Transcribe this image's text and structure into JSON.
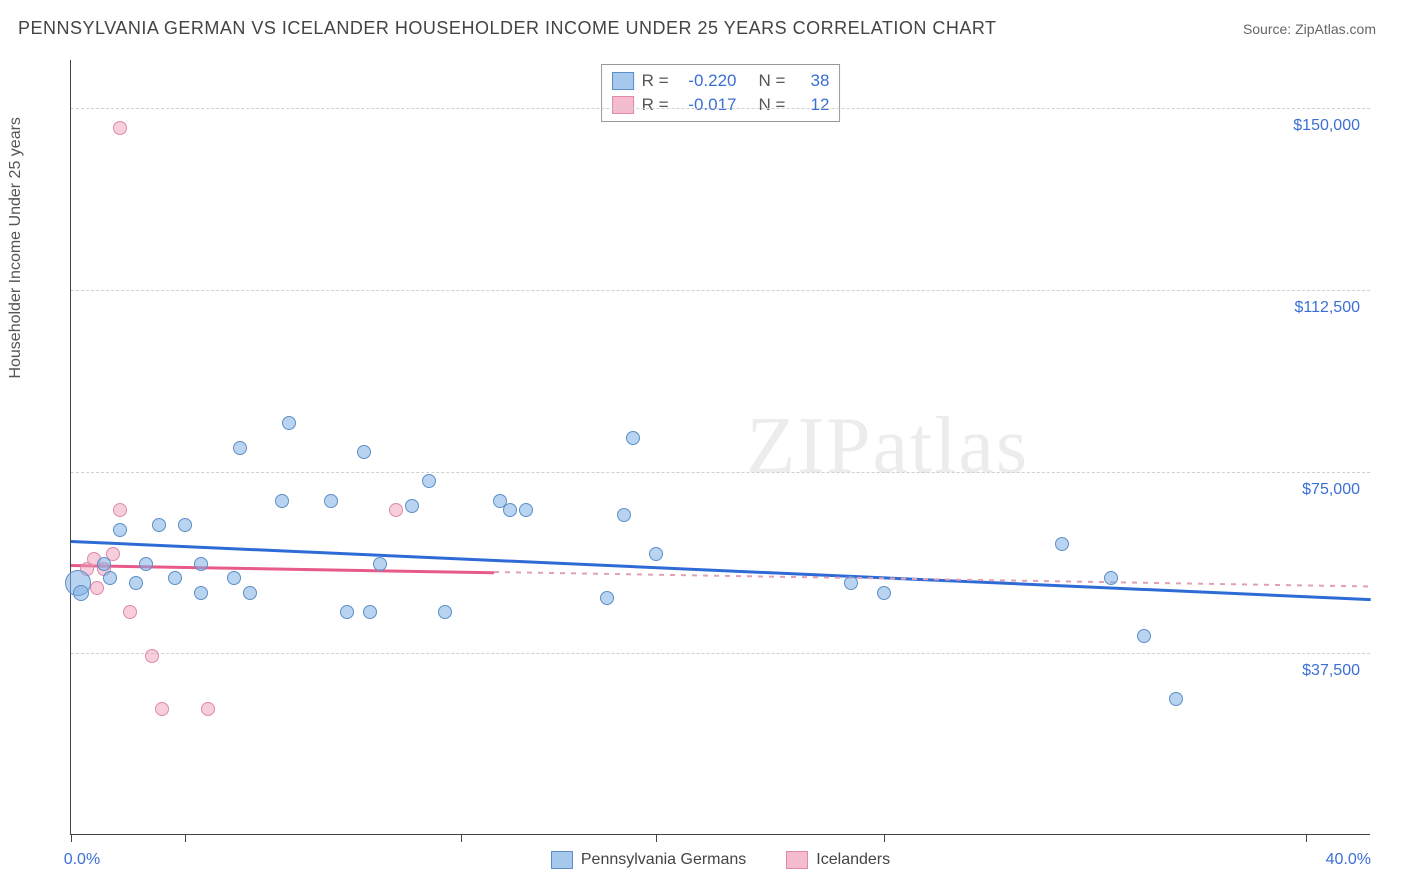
{
  "header": {
    "title": "PENNSYLVANIA GERMAN VS ICELANDER HOUSEHOLDER INCOME UNDER 25 YEARS CORRELATION CHART",
    "source": "Source: ZipAtlas.com"
  },
  "chart": {
    "type": "scatter",
    "y_axis_title": "Householder Income Under 25 years",
    "watermark": "ZIPatlas",
    "background_color": "#ffffff",
    "grid_color": "#d0d0d0",
    "axis_color": "#444444",
    "label_color": "#3b6fd6",
    "x_range": [
      0,
      40
    ],
    "y_range": [
      0,
      160000
    ],
    "y_ticks": [
      {
        "v": 37500,
        "label": "$37,500"
      },
      {
        "v": 75000,
        "label": "$75,000"
      },
      {
        "v": 112500,
        "label": "$112,500"
      },
      {
        "v": 150000,
        "label": "$150,000"
      }
    ],
    "x_ticks": [
      0,
      3.5,
      12,
      18,
      25,
      38
    ],
    "x_tick_labels": [
      {
        "v": 0,
        "label": "0.0%"
      },
      {
        "v": 40,
        "label": "40.0%"
      }
    ],
    "series_blue": {
      "name": "Pennsylvania Germans",
      "color_fill": "rgba(127,176,228,0.55)",
      "color_stroke": "#5b8fc7",
      "R": "-0.220",
      "N": "38",
      "trend": {
        "x1": 0,
        "y1": 61000,
        "x2": 40,
        "y2": 49000,
        "color": "#2e6bd6"
      },
      "points": [
        {
          "x": 0.2,
          "y": 52000,
          "size": 26
        },
        {
          "x": 0.3,
          "y": 50000,
          "size": 16
        },
        {
          "x": 1.0,
          "y": 56000,
          "size": 14
        },
        {
          "x": 1.2,
          "y": 53000,
          "size": 14
        },
        {
          "x": 1.5,
          "y": 63000,
          "size": 14
        },
        {
          "x": 2.0,
          "y": 52000,
          "size": 14
        },
        {
          "x": 2.3,
          "y": 56000,
          "size": 14
        },
        {
          "x": 2.7,
          "y": 64000,
          "size": 14
        },
        {
          "x": 3.2,
          "y": 53000,
          "size": 14
        },
        {
          "x": 3.5,
          "y": 64000,
          "size": 14
        },
        {
          "x": 4.0,
          "y": 56000,
          "size": 14
        },
        {
          "x": 4.0,
          "y": 50000,
          "size": 14
        },
        {
          "x": 5.0,
          "y": 53000,
          "size": 14
        },
        {
          "x": 5.2,
          "y": 80000,
          "size": 14
        },
        {
          "x": 5.5,
          "y": 50000,
          "size": 14
        },
        {
          "x": 6.5,
          "y": 69000,
          "size": 14
        },
        {
          "x": 6.7,
          "y": 85000,
          "size": 14
        },
        {
          "x": 8.0,
          "y": 69000,
          "size": 14
        },
        {
          "x": 8.5,
          "y": 46000,
          "size": 14
        },
        {
          "x": 9.0,
          "y": 79000,
          "size": 14
        },
        {
          "x": 9.2,
          "y": 46000,
          "size": 14
        },
        {
          "x": 9.5,
          "y": 56000,
          "size": 14
        },
        {
          "x": 10.5,
          "y": 68000,
          "size": 14
        },
        {
          "x": 11.0,
          "y": 73000,
          "size": 14
        },
        {
          "x": 11.5,
          "y": 46000,
          "size": 14
        },
        {
          "x": 13.2,
          "y": 69000,
          "size": 14
        },
        {
          "x": 13.5,
          "y": 67000,
          "size": 14
        },
        {
          "x": 14.0,
          "y": 67000,
          "size": 14
        },
        {
          "x": 16.5,
          "y": 49000,
          "size": 14
        },
        {
          "x": 17.0,
          "y": 66000,
          "size": 14
        },
        {
          "x": 17.3,
          "y": 82000,
          "size": 14
        },
        {
          "x": 18.0,
          "y": 58000,
          "size": 14
        },
        {
          "x": 24.0,
          "y": 52000,
          "size": 14
        },
        {
          "x": 25.0,
          "y": 50000,
          "size": 14
        },
        {
          "x": 30.5,
          "y": 60000,
          "size": 14
        },
        {
          "x": 32.0,
          "y": 53000,
          "size": 14
        },
        {
          "x": 33.0,
          "y": 41000,
          "size": 14
        },
        {
          "x": 34.0,
          "y": 28000,
          "size": 14
        }
      ]
    },
    "series_pink": {
      "name": "Icelanders",
      "color_fill": "rgba(240,160,185,0.5)",
      "color_stroke": "#e089a8",
      "R": "-0.017",
      "N": "12",
      "trend_solid": {
        "x1": 0,
        "y1": 56000,
        "x2": 13,
        "y2": 54500,
        "color": "#e85a8a"
      },
      "trend_dash": {
        "x1": 13,
        "y1": 54500,
        "x2": 40,
        "y2": 51500
      },
      "points": [
        {
          "x": 0.5,
          "y": 55000,
          "size": 14
        },
        {
          "x": 0.7,
          "y": 57000,
          "size": 14
        },
        {
          "x": 0.8,
          "y": 51000,
          "size": 14
        },
        {
          "x": 1.0,
          "y": 55000,
          "size": 14
        },
        {
          "x": 1.3,
          "y": 58000,
          "size": 14
        },
        {
          "x": 1.5,
          "y": 67000,
          "size": 14
        },
        {
          "x": 1.5,
          "y": 146000,
          "size": 14
        },
        {
          "x": 1.8,
          "y": 46000,
          "size": 14
        },
        {
          "x": 2.5,
          "y": 37000,
          "size": 14
        },
        {
          "x": 2.8,
          "y": 26000,
          "size": 14
        },
        {
          "x": 4.2,
          "y": 26000,
          "size": 14
        },
        {
          "x": 10.0,
          "y": 67000,
          "size": 14
        }
      ]
    }
  },
  "legend_top": {
    "rows": [
      {
        "swatch": "blue",
        "r_label": "R =",
        "r_val": "-0.220",
        "n_label": "N =",
        "n_val": "38"
      },
      {
        "swatch": "pink",
        "r_label": "R =",
        "r_val": "-0.017",
        "n_label": "N =",
        "n_val": "12"
      }
    ]
  },
  "legend_bottom": {
    "items": [
      {
        "swatch": "blue",
        "label": "Pennsylvania Germans"
      },
      {
        "swatch": "pink",
        "label": "Icelanders"
      }
    ]
  }
}
